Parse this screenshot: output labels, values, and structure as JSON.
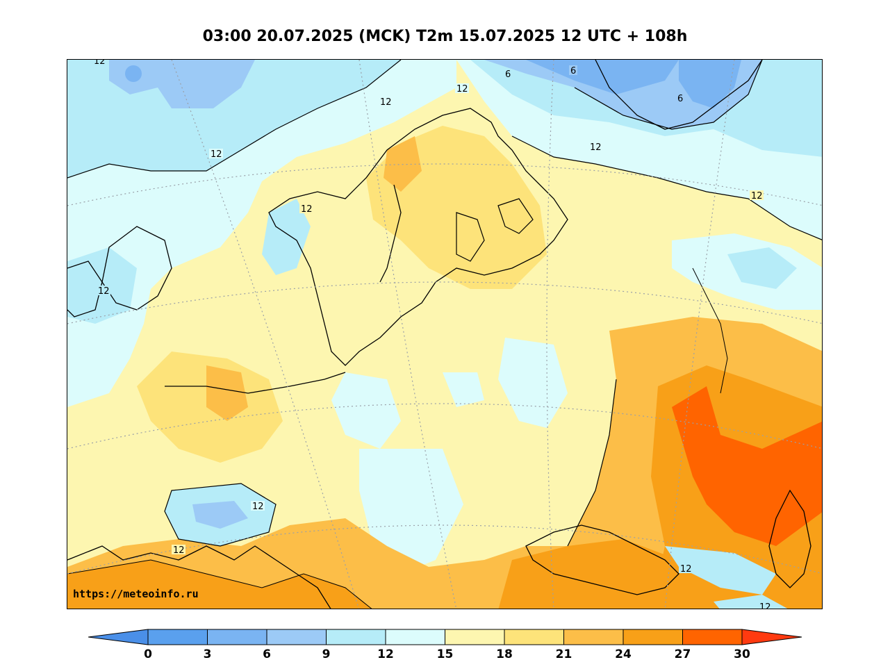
{
  "title": "03:00 20.07.2025 (MCK) T2m 15.07.2025 12 UTC + 108h",
  "watermark": "https://meteoinfo.ru",
  "map": {
    "contour_labels": [
      {
        "text": "12"
      },
      {
        "text": "12"
      },
      {
        "text": "12"
      },
      {
        "text": "12"
      },
      {
        "text": "12"
      },
      {
        "text": "12"
      },
      {
        "text": "12"
      },
      {
        "text": "12"
      },
      {
        "text": "12"
      },
      {
        "text": "6"
      },
      {
        "text": "6"
      },
      {
        "text": "6"
      },
      {
        "text": "12"
      },
      {
        "text": "12"
      },
      {
        "text": "12"
      }
    ]
  },
  "colorbar": {
    "ticks": [
      "0",
      "3",
      "6",
      "9",
      "12",
      "15",
      "18",
      "21",
      "24",
      "27",
      "30"
    ],
    "colors": {
      "below_0": "#4a8fe8",
      "0_3": "#5aa0ee",
      "3_6": "#7ab4f2",
      "6_9": "#9ccaf6",
      "9_12": "#b6ecf8",
      "12_15": "#dcfcfc",
      "15_18": "#fdf6b0",
      "18_21": "#fde37a",
      "21_24": "#fcbe48",
      "24_27": "#f8a018",
      "27_30": "#ff6400",
      "above_30": "#ff3a10"
    }
  }
}
